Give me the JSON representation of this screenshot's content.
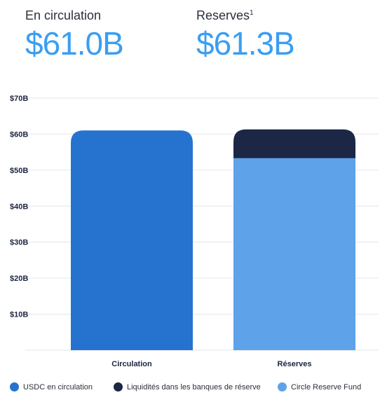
{
  "header": {
    "circulation": {
      "label": "En circulation",
      "value": "$61.0B"
    },
    "reserves": {
      "label": "Reserves",
      "footnote": "1",
      "value": "$61.3B"
    }
  },
  "colors": {
    "accent_text": "#3a9ef2",
    "usdc": "#2673cf",
    "bank": "#1b2745",
    "fund": "#5ea2ea",
    "grid": "#e3e6ea"
  },
  "chart_data": {
    "type": "bar",
    "stacked": true,
    "categories": [
      "Circulation",
      "Réserves"
    ],
    "series": [
      {
        "name": "USDC en circulation",
        "color": "#2673cf",
        "values": [
          61.0,
          0
        ]
      },
      {
        "name": "Circle Reserve Fund",
        "color": "#5ea2ea",
        "values": [
          0,
          53.3
        ]
      },
      {
        "name": "Liquidités dans les banques de réserve",
        "color": "#1b2745",
        "values": [
          0,
          8.0
        ]
      }
    ],
    "ylim": [
      0,
      70
    ],
    "yticks": [
      {
        "value": 10,
        "label": "$10B"
      },
      {
        "value": 20,
        "label": "$20B"
      },
      {
        "value": 30,
        "label": "$30B"
      },
      {
        "value": 40,
        "label": "$40B"
      },
      {
        "value": 50,
        "label": "$50B"
      },
      {
        "value": 60,
        "label": "$60B"
      },
      {
        "value": 70,
        "label": "$70B"
      }
    ],
    "grid": true,
    "legend_position": "bottom",
    "legend": [
      {
        "label": "USDC en circulation",
        "color": "#2673cf"
      },
      {
        "label": "Liquidités dans les banques de réserve",
        "color": "#1b2745"
      },
      {
        "label": "Circle Reserve Fund",
        "color": "#5ea2ea"
      }
    ]
  }
}
